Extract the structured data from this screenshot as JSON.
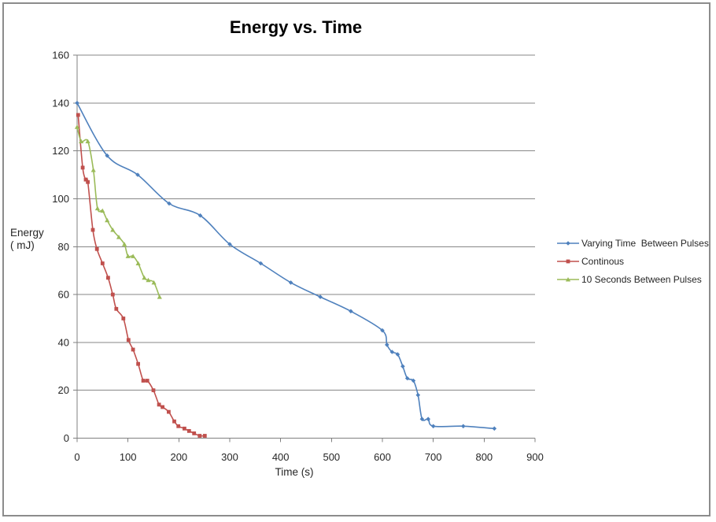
{
  "page": {
    "background_color": "#ffffff",
    "frame_border_color": "#8c8c8c"
  },
  "chart_data": {
    "type": "line",
    "title": "Energy vs. Time",
    "xlabel": "Time (s)",
    "ylabel_lines": [
      "Energy",
      "( mJ)"
    ],
    "xlim": [
      0,
      900
    ],
    "ylim": [
      0,
      160
    ],
    "x_ticks": [
      0,
      100,
      200,
      300,
      400,
      500,
      600,
      700,
      800,
      900
    ],
    "y_ticks": [
      0,
      20,
      40,
      60,
      80,
      100,
      120,
      140,
      160
    ],
    "grid": "horizontal",
    "gridline_color": "#878787",
    "axis_color": "#808080",
    "tick_label_color": "#262626",
    "legend_position": "right",
    "smooth": true,
    "series": [
      {
        "name": "Varying Time  Between Pulses",
        "color": "#4F81BD",
        "marker": "diamond",
        "points": [
          [
            0,
            140
          ],
          [
            59,
            118
          ],
          [
            119,
            110
          ],
          [
            181,
            98
          ],
          [
            242,
            93
          ],
          [
            300,
            81
          ],
          [
            361,
            73
          ],
          [
            420,
            65
          ],
          [
            478,
            59
          ],
          [
            538,
            53
          ],
          [
            600,
            45
          ],
          [
            609,
            39
          ],
          [
            619,
            36
          ],
          [
            630,
            35
          ],
          [
            640,
            30
          ],
          [
            649,
            25
          ],
          [
            661,
            24
          ],
          [
            670,
            18
          ],
          [
            678,
            8
          ],
          [
            690,
            8
          ],
          [
            700,
            5
          ],
          [
            759,
            5
          ],
          [
            820,
            4
          ]
        ]
      },
      {
        "name": "Continous",
        "color": "#C0504D",
        "marker": "square",
        "points": [
          [
            2,
            135
          ],
          [
            11,
            113
          ],
          [
            17,
            108
          ],
          [
            21,
            107
          ],
          [
            31,
            87
          ],
          [
            39,
            79
          ],
          [
            50,
            73
          ],
          [
            61,
            67
          ],
          [
            70,
            60
          ],
          [
            77,
            54
          ],
          [
            91,
            50
          ],
          [
            101,
            41
          ],
          [
            110,
            37
          ],
          [
            120,
            31
          ],
          [
            130,
            24
          ],
          [
            138,
            24
          ],
          [
            150,
            20
          ],
          [
            161,
            14
          ],
          [
            168,
            13
          ],
          [
            180,
            11
          ],
          [
            191,
            7
          ],
          [
            199,
            5
          ],
          [
            211,
            4
          ],
          [
            220,
            3
          ],
          [
            230,
            2
          ],
          [
            241,
            1
          ],
          [
            251,
            1
          ]
        ]
      },
      {
        "name": "10 Seconds Between Pulses",
        "color": "#9BBB59",
        "marker": "triangle",
        "points": [
          [
            0,
            130
          ],
          [
            8,
            124
          ],
          [
            21,
            124
          ],
          [
            32,
            112
          ],
          [
            40,
            96
          ],
          [
            50,
            95
          ],
          [
            59,
            91
          ],
          [
            70,
            87
          ],
          [
            82,
            84
          ],
          [
            93,
            81
          ],
          [
            100,
            76
          ],
          [
            110,
            76
          ],
          [
            120,
            73
          ],
          [
            132,
            67
          ],
          [
            140,
            66
          ],
          [
            151,
            65
          ],
          [
            162,
            59
          ]
        ]
      }
    ]
  }
}
